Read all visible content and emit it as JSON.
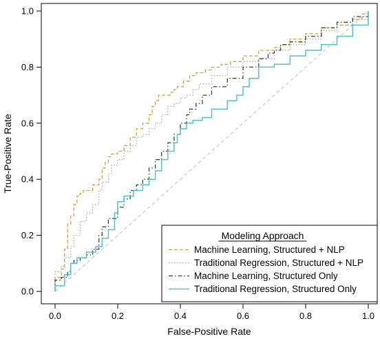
{
  "chart_data": {
    "type": "line",
    "xlabel": "False-Positive Rate",
    "ylabel": "True-Positive Rate",
    "xlim": [
      0,
      1
    ],
    "ylim": [
      0,
      1
    ],
    "x_ticks": [
      "0.0",
      "0.2",
      "0.4",
      "0.6",
      "0.8",
      "1.0"
    ],
    "y_ticks": [
      "0.0",
      "0.2",
      "0.4",
      "0.6",
      "0.8",
      "1.0"
    ],
    "grid": false,
    "legend": {
      "title": "Modeling Approach",
      "position": "bottom-right"
    },
    "reference_line": {
      "x": [
        0,
        1
      ],
      "y": [
        0,
        1
      ],
      "color": "#c8c8c8",
      "dash": "dashed"
    },
    "series": [
      {
        "name": "Machine Learning, Structured + NLP",
        "color": "#d4a23a",
        "dash": "dashed",
        "x": [
          0,
          0,
          0.02,
          0.03,
          0.04,
          0.05,
          0.06,
          0.07,
          0.08,
          0.09,
          0.1,
          0.12,
          0.14,
          0.15,
          0.16,
          0.17,
          0.18,
          0.2,
          0.22,
          0.24,
          0.26,
          0.28,
          0.3,
          0.31,
          0.32,
          0.33,
          0.35,
          0.37,
          0.38,
          0.39,
          0.41,
          0.43,
          0.45,
          0.48,
          0.5,
          0.53,
          0.56,
          0.6,
          0.65,
          0.7,
          0.72,
          0.75,
          0.8,
          0.85,
          0.9,
          0.95,
          0.98,
          1.0
        ],
        "y": [
          0,
          0.05,
          0.08,
          0.15,
          0.24,
          0.27,
          0.31,
          0.34,
          0.35,
          0.36,
          0.36,
          0.38,
          0.4,
          0.44,
          0.46,
          0.48,
          0.49,
          0.5,
          0.52,
          0.55,
          0.58,
          0.6,
          0.63,
          0.66,
          0.68,
          0.7,
          0.7,
          0.71,
          0.72,
          0.73,
          0.75,
          0.77,
          0.78,
          0.79,
          0.8,
          0.81,
          0.82,
          0.84,
          0.86,
          0.87,
          0.88,
          0.9,
          0.92,
          0.94,
          0.95,
          0.97,
          0.99,
          1.0
        ]
      },
      {
        "name": "Traditional Regression, Structured + NLP",
        "color": "#a8a8a8",
        "dash": "dotted",
        "x": [
          0,
          0,
          0.02,
          0.03,
          0.05,
          0.06,
          0.08,
          0.1,
          0.12,
          0.14,
          0.15,
          0.17,
          0.18,
          0.2,
          0.22,
          0.24,
          0.26,
          0.28,
          0.3,
          0.32,
          0.34,
          0.36,
          0.38,
          0.4,
          0.42,
          0.44,
          0.46,
          0.5,
          0.55,
          0.6,
          0.65,
          0.7,
          0.75,
          0.8,
          0.85,
          0.9,
          0.95,
          1.0
        ],
        "y": [
          0,
          0.07,
          0.09,
          0.12,
          0.16,
          0.2,
          0.25,
          0.28,
          0.31,
          0.36,
          0.39,
          0.42,
          0.45,
          0.47,
          0.5,
          0.52,
          0.55,
          0.56,
          0.58,
          0.6,
          0.63,
          0.66,
          0.67,
          0.69,
          0.7,
          0.72,
          0.74,
          0.77,
          0.8,
          0.82,
          0.83,
          0.86,
          0.88,
          0.9,
          0.93,
          0.95,
          0.97,
          1.0
        ]
      },
      {
        "name": "Machine Learning, Structured Only",
        "color": "#2f4a2f",
        "dash": "dashdot",
        "x": [
          0,
          0,
          0.02,
          0.04,
          0.05,
          0.06,
          0.08,
          0.1,
          0.12,
          0.14,
          0.15,
          0.17,
          0.2,
          0.22,
          0.24,
          0.26,
          0.28,
          0.3,
          0.32,
          0.34,
          0.36,
          0.38,
          0.4,
          0.42,
          0.43,
          0.45,
          0.47,
          0.5,
          0.55,
          0.6,
          0.65,
          0.68,
          0.7,
          0.72,
          0.75,
          0.8,
          0.85,
          0.9,
          0.95,
          1.0
        ],
        "y": [
          0,
          0.04,
          0.05,
          0.07,
          0.1,
          0.11,
          0.12,
          0.13,
          0.15,
          0.2,
          0.23,
          0.26,
          0.3,
          0.33,
          0.36,
          0.38,
          0.4,
          0.44,
          0.47,
          0.5,
          0.53,
          0.56,
          0.6,
          0.63,
          0.65,
          0.67,
          0.7,
          0.73,
          0.76,
          0.8,
          0.83,
          0.85,
          0.86,
          0.88,
          0.89,
          0.91,
          0.94,
          0.96,
          0.98,
          1.0
        ]
      },
      {
        "name": "Traditional Regression, Structured Only",
        "color": "#4fc3d0",
        "dash": "solid",
        "x": [
          0,
          0,
          0.03,
          0.03,
          0.05,
          0.07,
          0.1,
          0.13,
          0.15,
          0.17,
          0.19,
          0.2,
          0.22,
          0.25,
          0.28,
          0.3,
          0.32,
          0.34,
          0.36,
          0.38,
          0.39,
          0.4,
          0.42,
          0.44,
          0.47,
          0.5,
          0.55,
          0.58,
          0.6,
          0.62,
          0.65,
          0.7,
          0.75,
          0.8,
          0.85,
          0.9,
          0.95,
          1.0
        ],
        "y": [
          0,
          0.02,
          0.02,
          0.06,
          0.1,
          0.12,
          0.14,
          0.16,
          0.19,
          0.22,
          0.28,
          0.32,
          0.34,
          0.36,
          0.38,
          0.4,
          0.43,
          0.47,
          0.5,
          0.53,
          0.56,
          0.58,
          0.6,
          0.61,
          0.62,
          0.65,
          0.68,
          0.7,
          0.73,
          0.76,
          0.8,
          0.81,
          0.84,
          0.86,
          0.88,
          0.91,
          0.95,
          1.0
        ]
      }
    ]
  }
}
